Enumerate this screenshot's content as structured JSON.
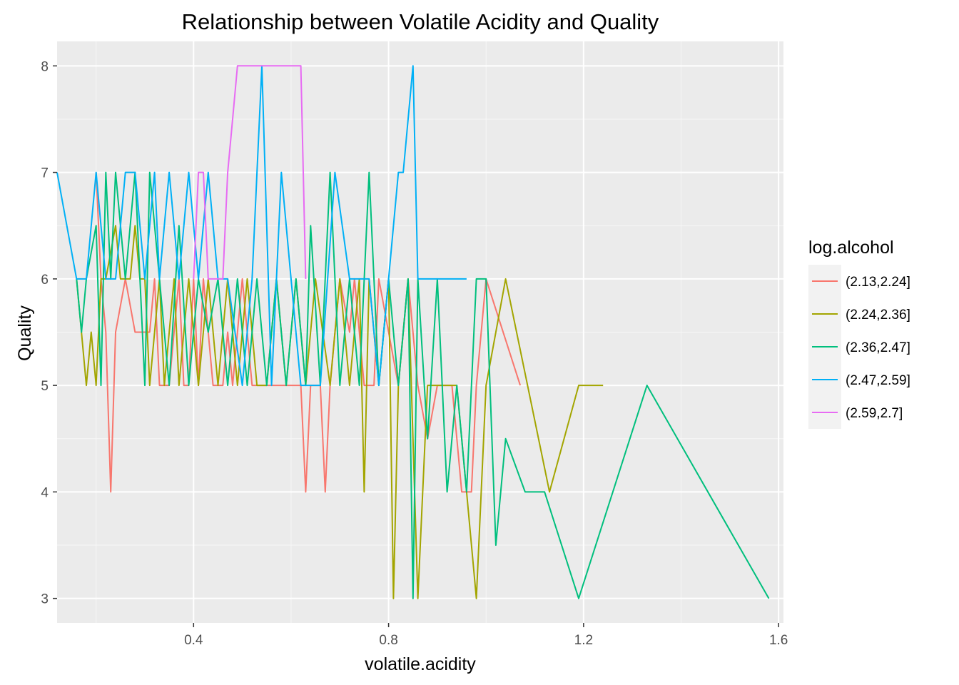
{
  "chart_data": {
    "type": "line",
    "title": "Relationship between Volatile Acidity and Quality",
    "xlabel": "volatile.acidity",
    "ylabel": "Quality",
    "xlim": [
      0.12,
      1.61
    ],
    "ylim": [
      2.77,
      8.23
    ],
    "x_ticks": [
      0.4,
      0.8,
      1.2,
      1.6
    ],
    "x_tick_labels": [
      "0.4",
      "0.8",
      "1.2",
      "1.6"
    ],
    "y_ticks": [
      3,
      4,
      5,
      6,
      7,
      8
    ],
    "y_tick_labels": [
      "3",
      "4",
      "5",
      "6",
      "7",
      "8"
    ],
    "grid": true,
    "background": "#ebebeb",
    "legend": {
      "title": "log.alcohol",
      "placement": "right"
    },
    "series": [
      {
        "name": "(2.13,2.24]",
        "color": "#f8766d",
        "x": [
          0.2,
          0.21,
          0.22,
          0.23,
          0.24,
          0.26,
          0.28,
          0.31,
          0.32,
          0.33,
          0.35,
          0.37,
          0.38,
          0.39,
          0.4,
          0.41,
          0.42,
          0.44,
          0.46,
          0.47,
          0.48,
          0.5,
          0.52,
          0.54,
          0.56,
          0.58,
          0.6,
          0.62,
          0.63,
          0.64,
          0.66,
          0.67,
          0.68,
          0.7,
          0.72,
          0.73,
          0.75,
          0.77,
          0.78,
          0.8,
          0.82,
          0.84,
          0.86,
          0.88,
          0.9,
          0.93,
          0.95,
          0.97,
          0.98,
          1.0,
          1.07
        ],
        "y": [
          7,
          6,
          5.5,
          4,
          5.5,
          6,
          5.5,
          5.5,
          6,
          5,
          5,
          6,
          5,
          5,
          6,
          5,
          6,
          5,
          5,
          5.5,
          5,
          6,
          5,
          5,
          5,
          5,
          5,
          5,
          4,
          5,
          5,
          4,
          5,
          6,
          5.5,
          6,
          5,
          5,
          6,
          5.5,
          5,
          6,
          5,
          4.5,
          5,
          5,
          4,
          4,
          5,
          6,
          5
        ]
      },
      {
        "name": "(2.24,2.36]",
        "color": "#a3a500",
        "x": [
          0.16,
          0.18,
          0.19,
          0.2,
          0.21,
          0.22,
          0.24,
          0.25,
          0.27,
          0.28,
          0.29,
          0.3,
          0.31,
          0.33,
          0.34,
          0.36,
          0.37,
          0.39,
          0.41,
          0.43,
          0.45,
          0.47,
          0.49,
          0.51,
          0.53,
          0.55,
          0.57,
          0.59,
          0.61,
          0.63,
          0.65,
          0.68,
          0.7,
          0.72,
          0.74,
          0.75,
          0.76,
          0.78,
          0.8,
          0.81,
          0.82,
          0.84,
          0.86,
          0.88,
          0.91,
          0.94,
          0.96,
          0.98,
          1.0,
          1.04,
          1.13,
          1.19,
          1.24
        ],
        "y": [
          6,
          5,
          5.5,
          5,
          6,
          6,
          6.5,
          6,
          6,
          6.5,
          6,
          6,
          5,
          6,
          5,
          6,
          5,
          6,
          5,
          6,
          5,
          6,
          5,
          6,
          5,
          5,
          6,
          5,
          6,
          5,
          6,
          5,
          6,
          5,
          6,
          4,
          6,
          5,
          6,
          3,
          5,
          6,
          3,
          5,
          5,
          5,
          4,
          3,
          5,
          6,
          4,
          5,
          5
        ]
      },
      {
        "name": "(2.36,2.47]",
        "color": "#00bf7d",
        "x": [
          0.16,
          0.17,
          0.18,
          0.2,
          0.21,
          0.22,
          0.23,
          0.24,
          0.26,
          0.28,
          0.3,
          0.31,
          0.33,
          0.35,
          0.37,
          0.39,
          0.41,
          0.43,
          0.45,
          0.47,
          0.49,
          0.51,
          0.53,
          0.55,
          0.57,
          0.59,
          0.61,
          0.63,
          0.64,
          0.66,
          0.68,
          0.7,
          0.72,
          0.74,
          0.76,
          0.78,
          0.8,
          0.82,
          0.84,
          0.85,
          0.86,
          0.88,
          0.9,
          0.92,
          0.94,
          0.96,
          0.98,
          1.0,
          1.02,
          1.04,
          1.08,
          1.12,
          1.19,
          1.33,
          1.58
        ],
        "y": [
          6,
          5.5,
          6,
          6.5,
          5,
          7,
          6,
          7,
          6,
          7,
          5,
          7,
          6,
          5,
          6.5,
          5,
          6,
          5.5,
          6,
          5,
          6,
          5,
          6,
          5,
          6,
          5,
          6,
          5,
          6.5,
          5,
          7,
          5,
          6,
          5,
          7,
          5,
          6,
          5,
          6,
          3,
          6,
          4.5,
          6,
          4,
          5,
          4,
          6,
          6,
          3.5,
          4.5,
          4,
          4,
          3,
          5,
          3
        ]
      },
      {
        "name": "(2.47,2.59]",
        "color": "#00b0f6",
        "x": [
          0.12,
          0.16,
          0.18,
          0.2,
          0.22,
          0.24,
          0.26,
          0.28,
          0.3,
          0.32,
          0.33,
          0.35,
          0.37,
          0.39,
          0.41,
          0.43,
          0.45,
          0.47,
          0.5,
          0.52,
          0.54,
          0.56,
          0.58,
          0.6,
          0.62,
          0.64,
          0.66,
          0.69,
          0.72,
          0.74,
          0.76,
          0.78,
          0.8,
          0.82,
          0.83,
          0.85,
          0.86,
          0.88,
          0.9,
          0.93,
          0.96
        ],
        "y": [
          7,
          6,
          6,
          7,
          6,
          6,
          7,
          7,
          6,
          7,
          6,
          7,
          6,
          7,
          6,
          7,
          6,
          6,
          5,
          6,
          8,
          5,
          7,
          6,
          5,
          5,
          5,
          7,
          6,
          6,
          6,
          5,
          6,
          7,
          7,
          8,
          6,
          6,
          6,
          6,
          6
        ]
      },
      {
        "name": "(2.59,2.7]",
        "color": "#e76bf3",
        "x": [
          0.4,
          0.41,
          0.42,
          0.43,
          0.45,
          0.46,
          0.47,
          0.48,
          0.49,
          0.5,
          0.53,
          0.56,
          0.59,
          0.61,
          0.62,
          0.63
        ],
        "y": [
          6,
          7,
          7,
          6,
          6,
          6,
          7,
          7.5,
          8,
          8,
          8,
          8,
          8,
          8,
          8,
          6
        ]
      }
    ]
  }
}
